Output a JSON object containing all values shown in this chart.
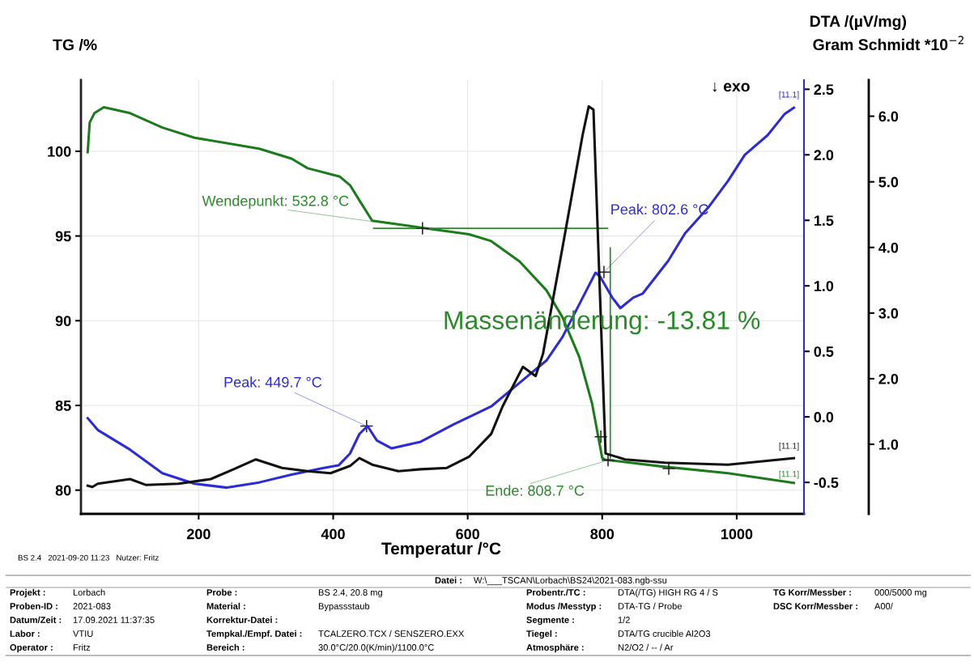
{
  "chart_data": {
    "type": "line",
    "xlabel": "Temperatur /°C",
    "ylabel": "TG /%",
    "y2label": "DTA /(µV/mg)",
    "y3label": "Gram Schmidt *10$^{−2}$",
    "xlim": [
      25,
      1100
    ],
    "xticks": [
      200,
      400,
      600,
      800,
      1000
    ],
    "ylim": [
      78.6,
      104.2
    ],
    "yticks": [
      80,
      85,
      90,
      95,
      100
    ],
    "y2lim": [
      -0.74,
      2.57
    ],
    "y2ticks": [
      {
        "value": -0.5,
        "label": "-0.5"
      },
      {
        "value": 0,
        "label": "0.0"
      },
      {
        "value": 0.5,
        "label": "0.5"
      },
      {
        "value": 1,
        "label": "1.0"
      },
      {
        "value": 1.5,
        "label": "1.5"
      },
      {
        "value": 2,
        "label": "2.0"
      },
      {
        "value": 2.5,
        "label": "2.5"
      }
    ],
    "y3lim": [
      -0.06,
      6.55
    ],
    "y3ticks": [
      {
        "value": 1,
        "label": "1.0"
      },
      {
        "value": 2,
        "label": "2.0"
      },
      {
        "value": 3,
        "label": "3.0"
      },
      {
        "value": 4,
        "label": "4.0"
      },
      {
        "value": 5,
        "label": "5.0"
      },
      {
        "value": 6,
        "label": "6.0"
      }
    ],
    "grid": true,
    "series": [
      {
        "axis": "y",
        "color": "#1c7c1c",
        "x": [
          35,
          38,
          45,
          59,
          98,
          146,
          194,
          290,
          338,
          362,
          410,
          425,
          439,
          458,
          530,
          602,
          635,
          677,
          717,
          741,
          766,
          785,
          800,
          804,
          888,
          987,
          1085
        ],
        "values": [
          99.95,
          101.7,
          102.25,
          102.6,
          102.25,
          101.4,
          100.8,
          100.15,
          99.57,
          99.0,
          98.5,
          98.0,
          97.1,
          95.9,
          95.5,
          95.1,
          94.7,
          93.5,
          91.8,
          90.2,
          87.85,
          85.1,
          81.9,
          81.8,
          81.4,
          81.0,
          80.43
        ]
      },
      {
        "axis": "y2",
        "color": "#2b2bd9",
        "x": [
          35,
          50,
          98,
          146,
          194,
          242,
          290,
          338,
          386,
          408,
          425,
          439,
          451,
          465,
          487,
          530,
          578,
          635,
          677,
          717,
          741,
          766,
          790,
          797,
          815,
          827,
          846,
          860,
          898,
          923,
          958,
          987,
          1012,
          1046,
          1071,
          1085
        ],
        "values": [
          -0.01,
          -0.1,
          -0.25,
          -0.43,
          -0.51,
          -0.54,
          -0.5,
          -0.44,
          -0.39,
          -0.37,
          -0.28,
          -0.13,
          -0.07,
          -0.18,
          -0.24,
          -0.19,
          -0.06,
          0.08,
          0.26,
          0.43,
          0.61,
          0.86,
          1.1,
          1.07,
          0.91,
          0.83,
          0.91,
          0.94,
          1.19,
          1.4,
          1.6,
          1.8,
          2.0,
          2.15,
          2.31,
          2.36
        ]
      },
      {
        "axis": "y3",
        "color": "#111111",
        "x": [
          35,
          42,
          50,
          98,
          122,
          170,
          218,
          252,
          285,
          324,
          362,
          396,
          425,
          439,
          458,
          497,
          530,
          569,
          602,
          635,
          652,
          682,
          701,
          712,
          741,
          771,
          780,
          787,
          805,
          834,
          893,
          987,
          1085
        ],
        "values": [
          0.37,
          0.35,
          0.4,
          0.47,
          0.38,
          0.4,
          0.47,
          0.62,
          0.77,
          0.64,
          0.59,
          0.56,
          0.67,
          0.79,
          0.69,
          0.59,
          0.62,
          0.64,
          0.81,
          1.16,
          1.58,
          2.18,
          2.04,
          2.38,
          4.0,
          5.72,
          6.15,
          6.1,
          0.86,
          0.77,
          0.72,
          0.69,
          0.79
        ]
      },
      {
        "axis": "y",
        "color": "#2a8a2a",
        "x": [
          460,
          808
        ],
        "values": [
          95.45,
          95.45
        ]
      },
      {
        "axis": "y",
        "color": "#2a8a2a",
        "x": [
          812,
          812
        ],
        "values": [
          94.3,
          81.9
        ]
      },
      {
        "type": "scatter",
        "axis": "y",
        "color": "#222222",
        "marker": "cross",
        "x": [
          532.8,
          449.7,
          802.6,
          808.7,
          798,
          899
        ],
        "values": [
          95.45,
          83.78,
          92.87,
          81.77,
          83.15,
          81.27
        ]
      }
    ],
    "annotations": [
      {
        "text": "Wendepunkt: 532.8 °C",
        "x": 532.8,
        "y": 95.45
      },
      {
        "text": "Peak: 449.7 °C",
        "x": 449.7,
        "y": 83.78
      },
      {
        "text": "Peak: 802.6 °C",
        "x": 802.6,
        "y": 92.87
      },
      {
        "text": "Ende: 808.7 °C",
        "x": 808.7,
        "y": 81.77
      },
      "Massenänderung: -13.81 %",
      "↓ exo",
      "[11.1]",
      "[11.1]",
      "[11.1]",
      "BS 2.4   2021-09-20 11:23   Nutzer: Fritz",
      "Datei :",
      "W:\\___TSCAN\\Lorbach\\BS24\\2021-083.ngb-ssu",
      "Projekt :",
      "Lorbach",
      "Proben-ID :",
      "2021-083",
      "Datum/Zeit :",
      "17.09.2021 11:37:35",
      "Labor :",
      "VTIU",
      "Operator :",
      "Fritz",
      "Probe :",
      "BS 2.4, 20.8 mg",
      "Material :",
      "Bypassstaub",
      "Korrektur-Datei :",
      "Tempkal./Empf. Datei :",
      "TCALZERO.TCX / SENSZERO.EXX",
      "Bereich :",
      "30.0°C/20.0(K/min)/1100.0°C",
      "Probentr./TC :",
      "DTA(/TG) HIGH RG 4 / S",
      "Modus /Messtyp :",
      "DTA-TG / Probe",
      "Segmente :",
      "1/2",
      "Tiegel :",
      "DTA/TG crucible Al2O3",
      "Atmosphäre :",
      "N2/O2 / -- / Ar",
      "TG Korr/Messber :",
      "000/5000 mg",
      "DSC Korr/Messber :",
      "A00/"
    ]
  }
}
